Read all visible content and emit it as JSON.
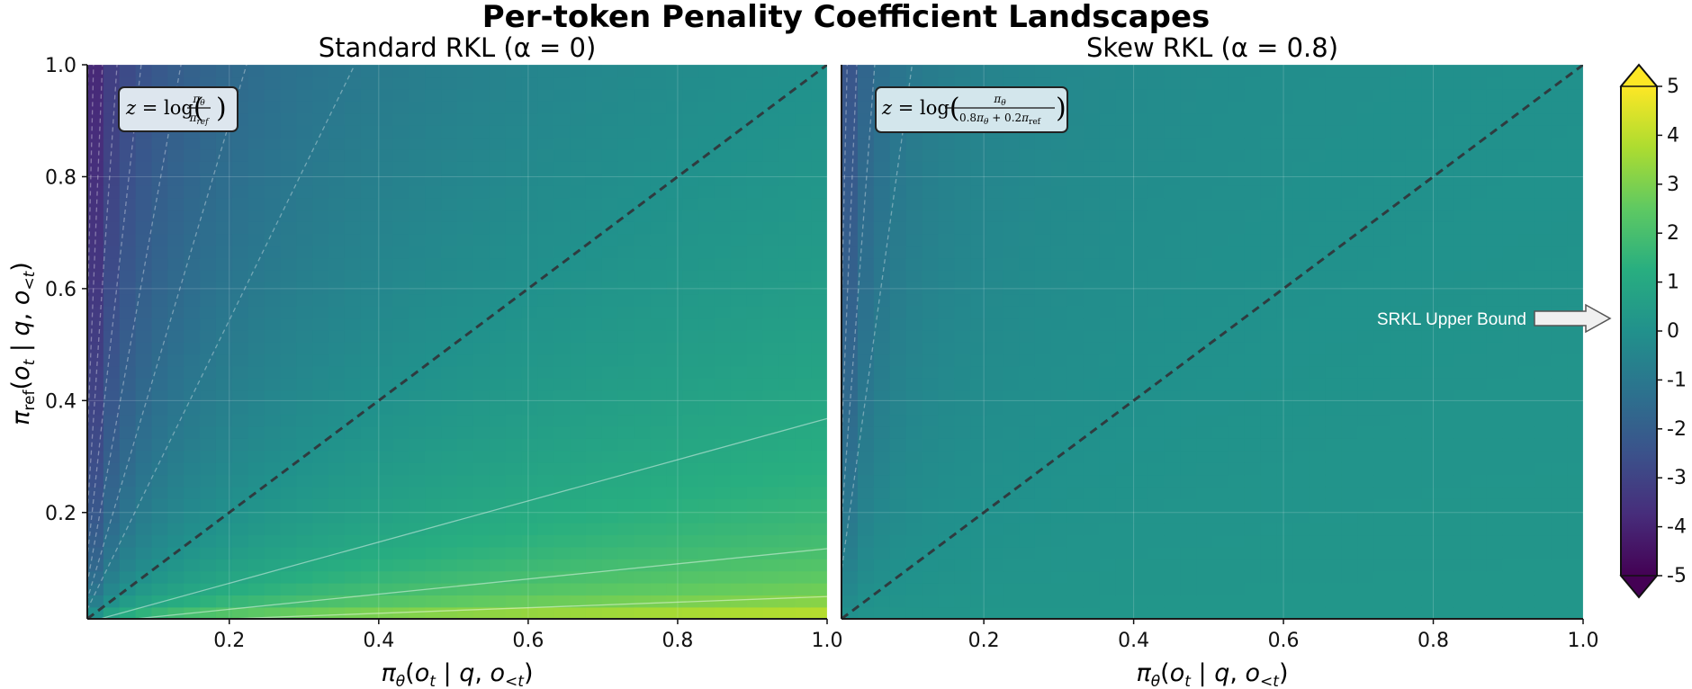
{
  "figure": {
    "title": "Per-token Penality Coefficient Landscapes",
    "annotation": "SRKL Upper Bound"
  },
  "chart_data": [
    {
      "type": "heatmap",
      "title": "Standard RKL (α = 0)",
      "alpha": 0,
      "formula": "z = log(πθ / πref)",
      "xlabel": "πθ(ot | q, o<t)",
      "ylabel": "πref(ot | q, o<t)",
      "xlim": [
        0.01,
        1.0
      ],
      "ylim": [
        0.01,
        1.0
      ],
      "xticks": [
        "0.2",
        "0.4",
        "0.6",
        "0.8",
        "1.0"
      ],
      "yticks": [
        "0.2",
        "0.4",
        "0.6",
        "0.8",
        "1.0"
      ],
      "diagonal": "y = x (dashed)",
      "grid": true,
      "colorscale": "viridis"
    },
    {
      "type": "heatmap",
      "title": "Skew RKL (α = 0.8)",
      "alpha": 0.8,
      "formula": "z = log(πθ / (0.8πθ + 0.2πref))",
      "xlabel": "πθ(ot | q, o<t)",
      "xlim": [
        0.01,
        1.0
      ],
      "ylim": [
        0.01,
        1.0
      ],
      "xticks": [
        "0.2",
        "0.4",
        "0.6",
        "0.8",
        "1.0"
      ],
      "upper_bound": 0.223,
      "diagonal": "y = x (dashed)",
      "grid": true,
      "colorscale": "viridis"
    }
  ],
  "colorbar": {
    "min": -5,
    "max": 5,
    "ticks": [
      "5",
      "4",
      "3",
      "2",
      "1",
      "0",
      "-1",
      "-2",
      "-3",
      "-4",
      "-5"
    ],
    "extend": "both"
  },
  "styles": {
    "diagonal_color": "#2f3b3f",
    "axis_color": "#1a1a1a",
    "annotation_color": "#ffffff",
    "arrow_fill": "#f0f0f0"
  }
}
